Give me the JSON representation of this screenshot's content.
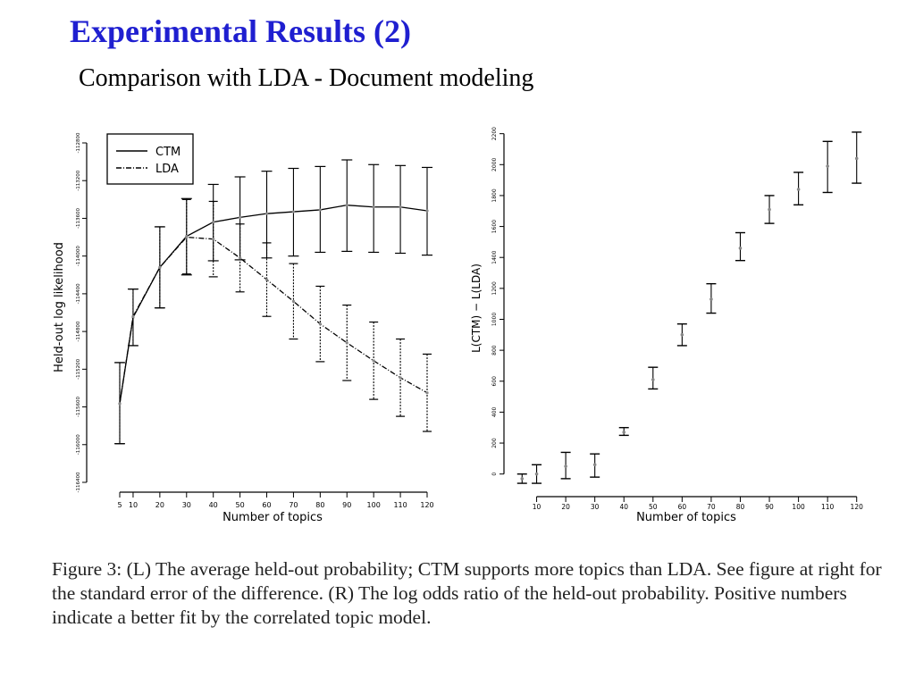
{
  "slide": {
    "title": "Experimental Results (2)",
    "subtitle": "Comparison with LDA - Document modeling",
    "caption": "Figure 3: (L) The average held-out probability; CTM supports more topics than LDA. See figure at right for the standard error of the difference. (R) The log odds ratio of the held-out probability. Positive numbers indicate a better fit by the correlated topic model."
  },
  "chart_data": [
    {
      "type": "line",
      "title": "",
      "xlabel": "Number of topics",
      "ylabel": "Held-out log likelihood",
      "x": [
        5,
        10,
        20,
        30,
        40,
        50,
        60,
        70,
        80,
        90,
        100,
        110,
        120
      ],
      "x_tick_labels": [
        "5",
        "10",
        "20",
        "30",
        "40",
        "50",
        "60",
        "70",
        "80",
        "90",
        "100",
        "110",
        "120"
      ],
      "y_ticks": [
        -116400,
        -116000,
        -115600,
        -115200,
        -114800,
        -114400,
        -114000,
        -113600,
        -113200,
        -112800
      ],
      "y_tick_labels": [
        "-116400",
        "-116000",
        "-115600",
        "-115200",
        "-114800",
        "-114400",
        "-114000",
        "-113600",
        "-113200",
        "-112800"
      ],
      "ylim": [
        -116400,
        -112800
      ],
      "legend": {
        "position": "top-left",
        "entries": [
          "CTM",
          "LDA"
        ]
      },
      "grid": false,
      "series": [
        {
          "name": "CTM",
          "values": [
            -115565,
            -114650,
            -114120,
            -113790,
            -113640,
            -113590,
            -113550,
            -113530,
            -113510,
            -113460,
            -113480,
            -113480,
            -113520
          ],
          "lower": [
            -115990,
            -114950,
            -114550,
            -114200,
            -114050,
            -114040,
            -114020,
            -114000,
            -113960,
            -113950,
            -113960,
            -113970,
            -113990
          ],
          "upper": [
            -115130,
            -114350,
            -113690,
            -113390,
            -113240,
            -113160,
            -113100,
            -113070,
            -113050,
            -112980,
            -113030,
            -113040,
            -113060
          ]
        },
        {
          "name": "LDA",
          "values": [
            -115565,
            -114640,
            -114120,
            -113800,
            -113820,
            -114020,
            -114250,
            -114480,
            -114720,
            -114920,
            -115110,
            -115290,
            -115450
          ],
          "lower": [
            -115990,
            -114950,
            -114550,
            -114190,
            -114220,
            -114380,
            -114640,
            -114880,
            -115120,
            -115320,
            -115520,
            -115700,
            -115860
          ],
          "upper": [
            -115130,
            -114350,
            -113690,
            -113400,
            -113420,
            -113660,
            -113860,
            -114080,
            -114320,
            -114520,
            -114700,
            -114880,
            -115040
          ]
        }
      ]
    },
    {
      "type": "scatter",
      "title": "",
      "xlabel": "Number of topics",
      "ylabel": "L(CTM) − L(LDA)",
      "x": [
        5,
        10,
        20,
        30,
        40,
        50,
        60,
        70,
        80,
        90,
        100,
        110,
        120
      ],
      "x_tick_labels": [
        "10",
        "20",
        "30",
        "40",
        "50",
        "60",
        "70",
        "80",
        "90",
        "100",
        "110",
        "120"
      ],
      "x_ticks": [
        10,
        20,
        30,
        40,
        50,
        60,
        70,
        80,
        90,
        100,
        110,
        120
      ],
      "y_ticks": [
        0,
        200,
        400,
        600,
        800,
        1000,
        1200,
        1400,
        1600,
        1800,
        2000,
        2200
      ],
      "y_tick_labels": [
        "0",
        "200",
        "400",
        "600",
        "800",
        "1000",
        "1200",
        "1400",
        "1600",
        "1800",
        "2000",
        "2200"
      ],
      "ylim": [
        -100,
        2250
      ],
      "xlim": [
        0,
        125
      ],
      "grid": false,
      "values": [
        -30,
        0,
        50,
        60,
        270,
        610,
        900,
        1130,
        1460,
        1710,
        1840,
        1990,
        2040
      ],
      "lower": [
        -60,
        -60,
        -30,
        -20,
        250,
        550,
        830,
        1040,
        1380,
        1620,
        1740,
        1820,
        1880
      ],
      "upper": [
        0,
        60,
        140,
        130,
        300,
        690,
        970,
        1230,
        1560,
        1800,
        1950,
        2150,
        2210
      ]
    }
  ]
}
